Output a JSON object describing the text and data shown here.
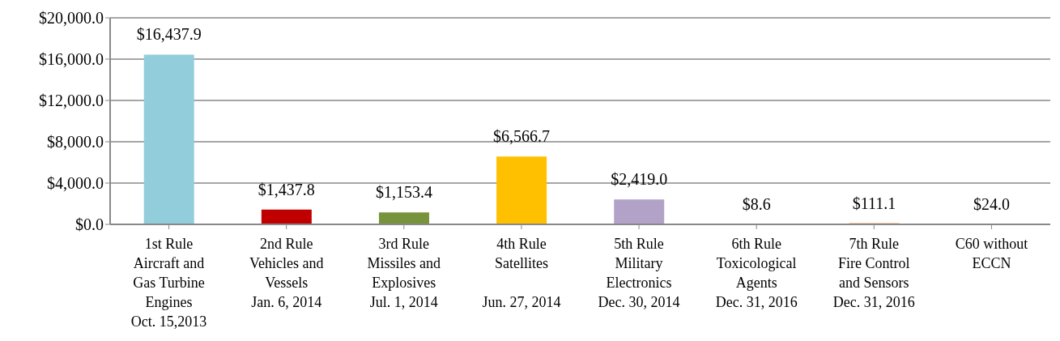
{
  "chart_data": {
    "type": "bar",
    "categories": [
      "1st Rule\nAircraft and\nGas Turbine\nEngines\nOct. 15,2013",
      "2nd Rule\nVehicles and\nVessels\nJan. 6, 2014",
      "3rd Rule\nMissiles and\nExplosives\nJul. 1, 2014",
      "4th Rule\nSatellites\n\nJun. 27, 2014",
      "5th Rule\nMilitary\nElectronics\nDec. 30, 2014",
      "6th Rule\nToxicological\nAgents\nDec. 31, 2016",
      "7th Rule\nFire Control\nand Sensors\nDec. 31, 2016",
      "C60 without\nECCN"
    ],
    "values": [
      16437.9,
      1437.8,
      1153.4,
      6566.7,
      2419.0,
      8.6,
      111.1,
      24.0
    ],
    "colors": [
      "#92cddc",
      "#c00000",
      "#77933c",
      "#ffc000",
      "#b2a2c7",
      "#4bacc6",
      "#f79646",
      "#8064a2"
    ],
    "value_labels": [
      "$16,437.9",
      "$1,437.8",
      "$1,153.4",
      "$6,566.7",
      "$2,419.0",
      "$8.6",
      "$111.1",
      "$24.0"
    ],
    "ylim": [
      0,
      20000
    ],
    "yticks": [
      {
        "value": 0,
        "label": "$0.0"
      },
      {
        "value": 4000,
        "label": "$4,000.0"
      },
      {
        "value": 8000,
        "label": "$8,000.0"
      },
      {
        "value": 12000,
        "label": "$12,000.0"
      },
      {
        "value": 16000,
        "label": "$16,000.0"
      },
      {
        "value": 20000,
        "label": "$20,000.0"
      }
    ],
    "grid": "y"
  }
}
